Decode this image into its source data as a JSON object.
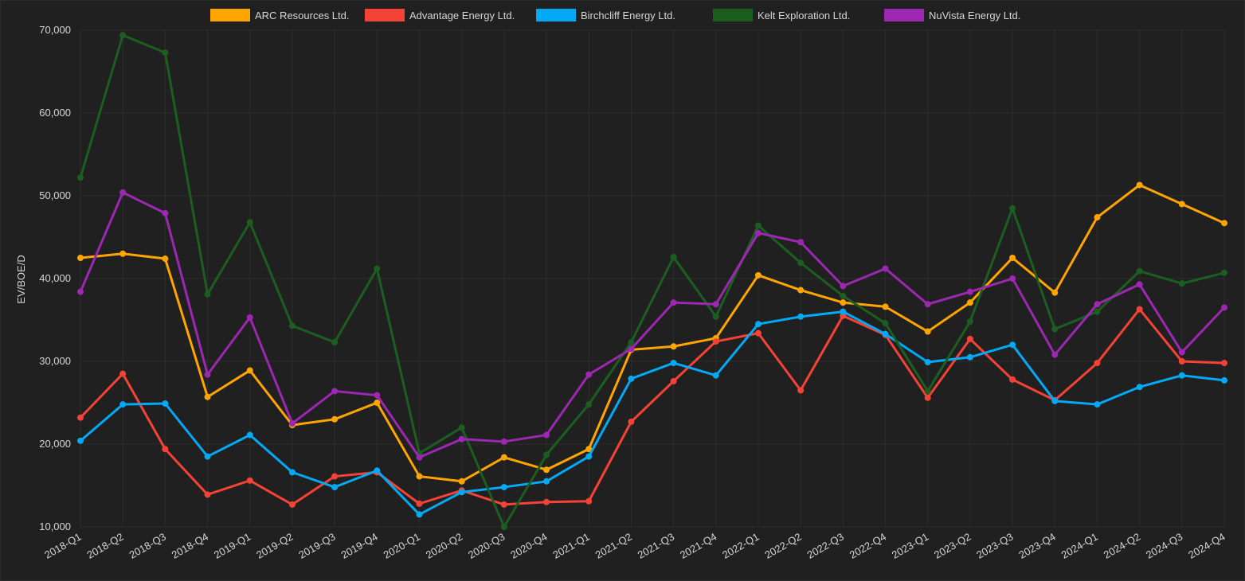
{
  "chart_data": {
    "type": "line",
    "ylabel": "EV/BOE/D",
    "ylim": [
      10000,
      70000
    ],
    "yticks": [
      10000,
      20000,
      30000,
      40000,
      50000,
      60000,
      70000
    ],
    "ytick_labels": [
      "10,000",
      "20,000",
      "30,000",
      "40,000",
      "50,000",
      "60,000",
      "70,000"
    ],
    "grid": true,
    "legend_position": "top",
    "categories": [
      "2018-Q1",
      "2018-Q2",
      "2018-Q3",
      "2018-Q4",
      "2019-Q1",
      "2019-Q2",
      "2019-Q3",
      "2019-Q4",
      "2020-Q1",
      "2020-Q2",
      "2020-Q3",
      "2020-Q4",
      "2021-Q1",
      "2021-Q2",
      "2021-Q3",
      "2021-Q4",
      "2022-Q1",
      "2022-Q2",
      "2022-Q3",
      "2022-Q4",
      "2023-Q1",
      "2023-Q2",
      "2023-Q3",
      "2023-Q4",
      "2024-Q1",
      "2024-Q2",
      "2024-Q3",
      "2024-Q4"
    ],
    "series": [
      {
        "name": "ARC Resources Ltd.",
        "color": "#ffa500",
        "values": [
          42500,
          43000,
          42400,
          25700,
          28900,
          22300,
          23000,
          25000,
          16100,
          15500,
          18400,
          16900,
          19400,
          31400,
          31800,
          32800,
          40400,
          38600,
          37100,
          36600,
          33600,
          37100,
          42500,
          38300,
          47400,
          51300,
          49000,
          46700
        ]
      },
      {
        "name": "Advantage Energy Ltd.",
        "color": "#f44336",
        "values": [
          23200,
          28500,
          19400,
          13900,
          15600,
          12700,
          16100,
          16600,
          12800,
          14400,
          12700,
          13000,
          13100,
          22700,
          27600,
          32400,
          33400,
          26500,
          35500,
          33200,
          25600,
          32700,
          27800,
          25300,
          29800,
          36300,
          30000,
          29800
        ]
      },
      {
        "name": "Birchcliff Energy Ltd.",
        "color": "#03a9f4",
        "values": [
          20400,
          24800,
          24900,
          18500,
          21100,
          16600,
          14800,
          16800,
          11500,
          14200,
          14800,
          15500,
          18500,
          27900,
          29800,
          28300,
          34500,
          35400,
          36000,
          33300,
          29900,
          30500,
          32000,
          25200,
          24800,
          26900,
          28300,
          27700
        ]
      },
      {
        "name": "Kelt Exploration Ltd.",
        "color": "#1b5e20",
        "values": [
          52200,
          69400,
          67300,
          38100,
          46800,
          34300,
          32300,
          41200,
          18900,
          22000,
          10000,
          18700,
          24800,
          32300,
          42600,
          35400,
          46400,
          41900,
          37900,
          34600,
          26400,
          34800,
          48500,
          33900,
          36000,
          40900,
          39400,
          40700
        ]
      },
      {
        "name": "NuVista Energy Ltd.",
        "color": "#9c27b0",
        "values": [
          38400,
          50400,
          47900,
          28400,
          35300,
          22500,
          26400,
          25900,
          18400,
          20600,
          20300,
          21100,
          28400,
          31500,
          37100,
          36900,
          45500,
          44400,
          39100,
          41200,
          36900,
          38400,
          40000,
          30800,
          36900,
          39300,
          31100,
          36500
        ]
      }
    ]
  }
}
